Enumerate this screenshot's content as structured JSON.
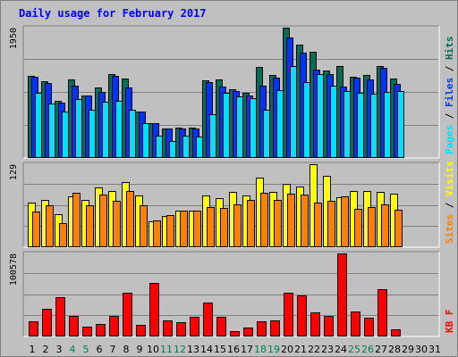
{
  "chart_data": {
    "type": "bar",
    "title": "Daily usage for February 2017",
    "categories": [
      "1",
      "2",
      "3",
      "4",
      "5",
      "6",
      "7",
      "8",
      "9",
      "10",
      "11",
      "12",
      "13",
      "14",
      "15",
      "16",
      "17",
      "18",
      "19",
      "20",
      "21",
      "22",
      "23",
      "24",
      "25",
      "26",
      "27",
      "28",
      "29",
      "30",
      "31"
    ],
    "weekend_days": [
      "4",
      "5",
      "11",
      "12",
      "18",
      "19",
      "25",
      "26"
    ],
    "colors": {
      "hits": "#006f56",
      "files": "#0033ff",
      "pages": "#00e0ff",
      "visits": "#ffff00",
      "sites": "#ff8000",
      "kbytes": "#ff0000",
      "title": "#0000ff",
      "weekend": "#00804f"
    },
    "panels": [
      {
        "name": "hits-files-pages",
        "ymax_label": "1950",
        "ylim": [
          0,
          1950
        ],
        "right_label": [
          {
            "text": "Pages",
            "color": "#00e0ff"
          },
          {
            "text": " / ",
            "color": "#000000"
          },
          {
            "text": "Files",
            "color": "#0033ff"
          },
          {
            "text": " / ",
            "color": "#000000"
          },
          {
            "text": "Hits",
            "color": "#006f56"
          }
        ],
        "series": [
          {
            "name": "Hits",
            "color": "#006f56",
            "values": [
              1230,
              1150,
              850,
              1180,
              940,
              1050,
              1250,
              1190,
              700,
              520,
              440,
              460,
              460,
              1160,
              1170,
              1030,
              970,
              1360,
              1240,
              1950,
              1700,
              1590,
              1310,
              1380,
              1220,
              1240,
              1370,
              1190,
              0,
              0,
              0
            ]
          },
          {
            "name": "Files",
            "color": "#0033ff",
            "values": [
              1220,
              1120,
              830,
              1080,
              930,
              990,
              1230,
              1050,
              700,
              520,
              440,
              440,
              440,
              1140,
              1070,
              1000,
              940,
              1080,
              1200,
              1800,
              1580,
              1320,
              1250,
              1070,
              1200,
              1170,
              1350,
              1110,
              0,
              0,
              0
            ]
          },
          {
            "name": "Pages",
            "color": "#00e0ff",
            "values": [
              980,
              820,
              700,
              880,
              720,
              840,
              860,
              720,
              520,
              330,
              250,
              330,
              320,
              660,
              980,
              920,
              900,
              720,
              1010,
              1370,
              1140,
              1250,
              1080,
              1000,
              970,
              960,
              990,
              1000,
              0,
              0,
              0
            ]
          }
        ]
      },
      {
        "name": "visits-sites",
        "ymax_label": "129",
        "ylim": [
          0,
          129
        ],
        "right_label": [
          {
            "text": "Sites",
            "color": "#ff8000"
          },
          {
            "text": " / ",
            "color": "#000000"
          },
          {
            "text": "Visits",
            "color": "#ffff00"
          }
        ],
        "series": [
          {
            "name": "Visits",
            "color": "#ffff00",
            "values": [
              70,
              73,
              52,
              79,
              73,
              93,
              87,
              101,
              80,
              40,
              48,
              57,
              57,
              81,
              76,
              86,
              81,
              108,
              86,
              98,
              94,
              129,
              111,
              78,
              87,
              87,
              86,
              83,
              0,
              0,
              0
            ]
          },
          {
            "name": "Sites",
            "color": "#ff8000",
            "values": [
              56,
              65,
              38,
              85,
              65,
              82,
              72,
              87,
              65,
              42,
              50,
              57,
              57,
              63,
              61,
              67,
              74,
              85,
              74,
              83,
              82,
              70,
              72,
              79,
              60,
              63,
              67,
              58,
              0,
              0,
              0
            ]
          }
        ]
      },
      {
        "name": "kbytes",
        "ymax_label": "100578",
        "ylim": [
          0,
          100578
        ],
        "right_label": [
          {
            "text": "KB F",
            "color": "#ff0000"
          }
        ],
        "series": [
          {
            "name": "KB F",
            "color": "#ff0000",
            "values": [
              18500,
              33000,
              48000,
              24500,
              12000,
              15000,
              25000,
              52500,
              14000,
              65000,
              20000,
              17000,
              23500,
              41500,
              23500,
              6500,
              11000,
              18500,
              20000,
              53500,
              50000,
              29000,
              25000,
              100578,
              30000,
              22500,
              57000,
              8500,
              0,
              0,
              0
            ]
          }
        ]
      }
    ]
  }
}
